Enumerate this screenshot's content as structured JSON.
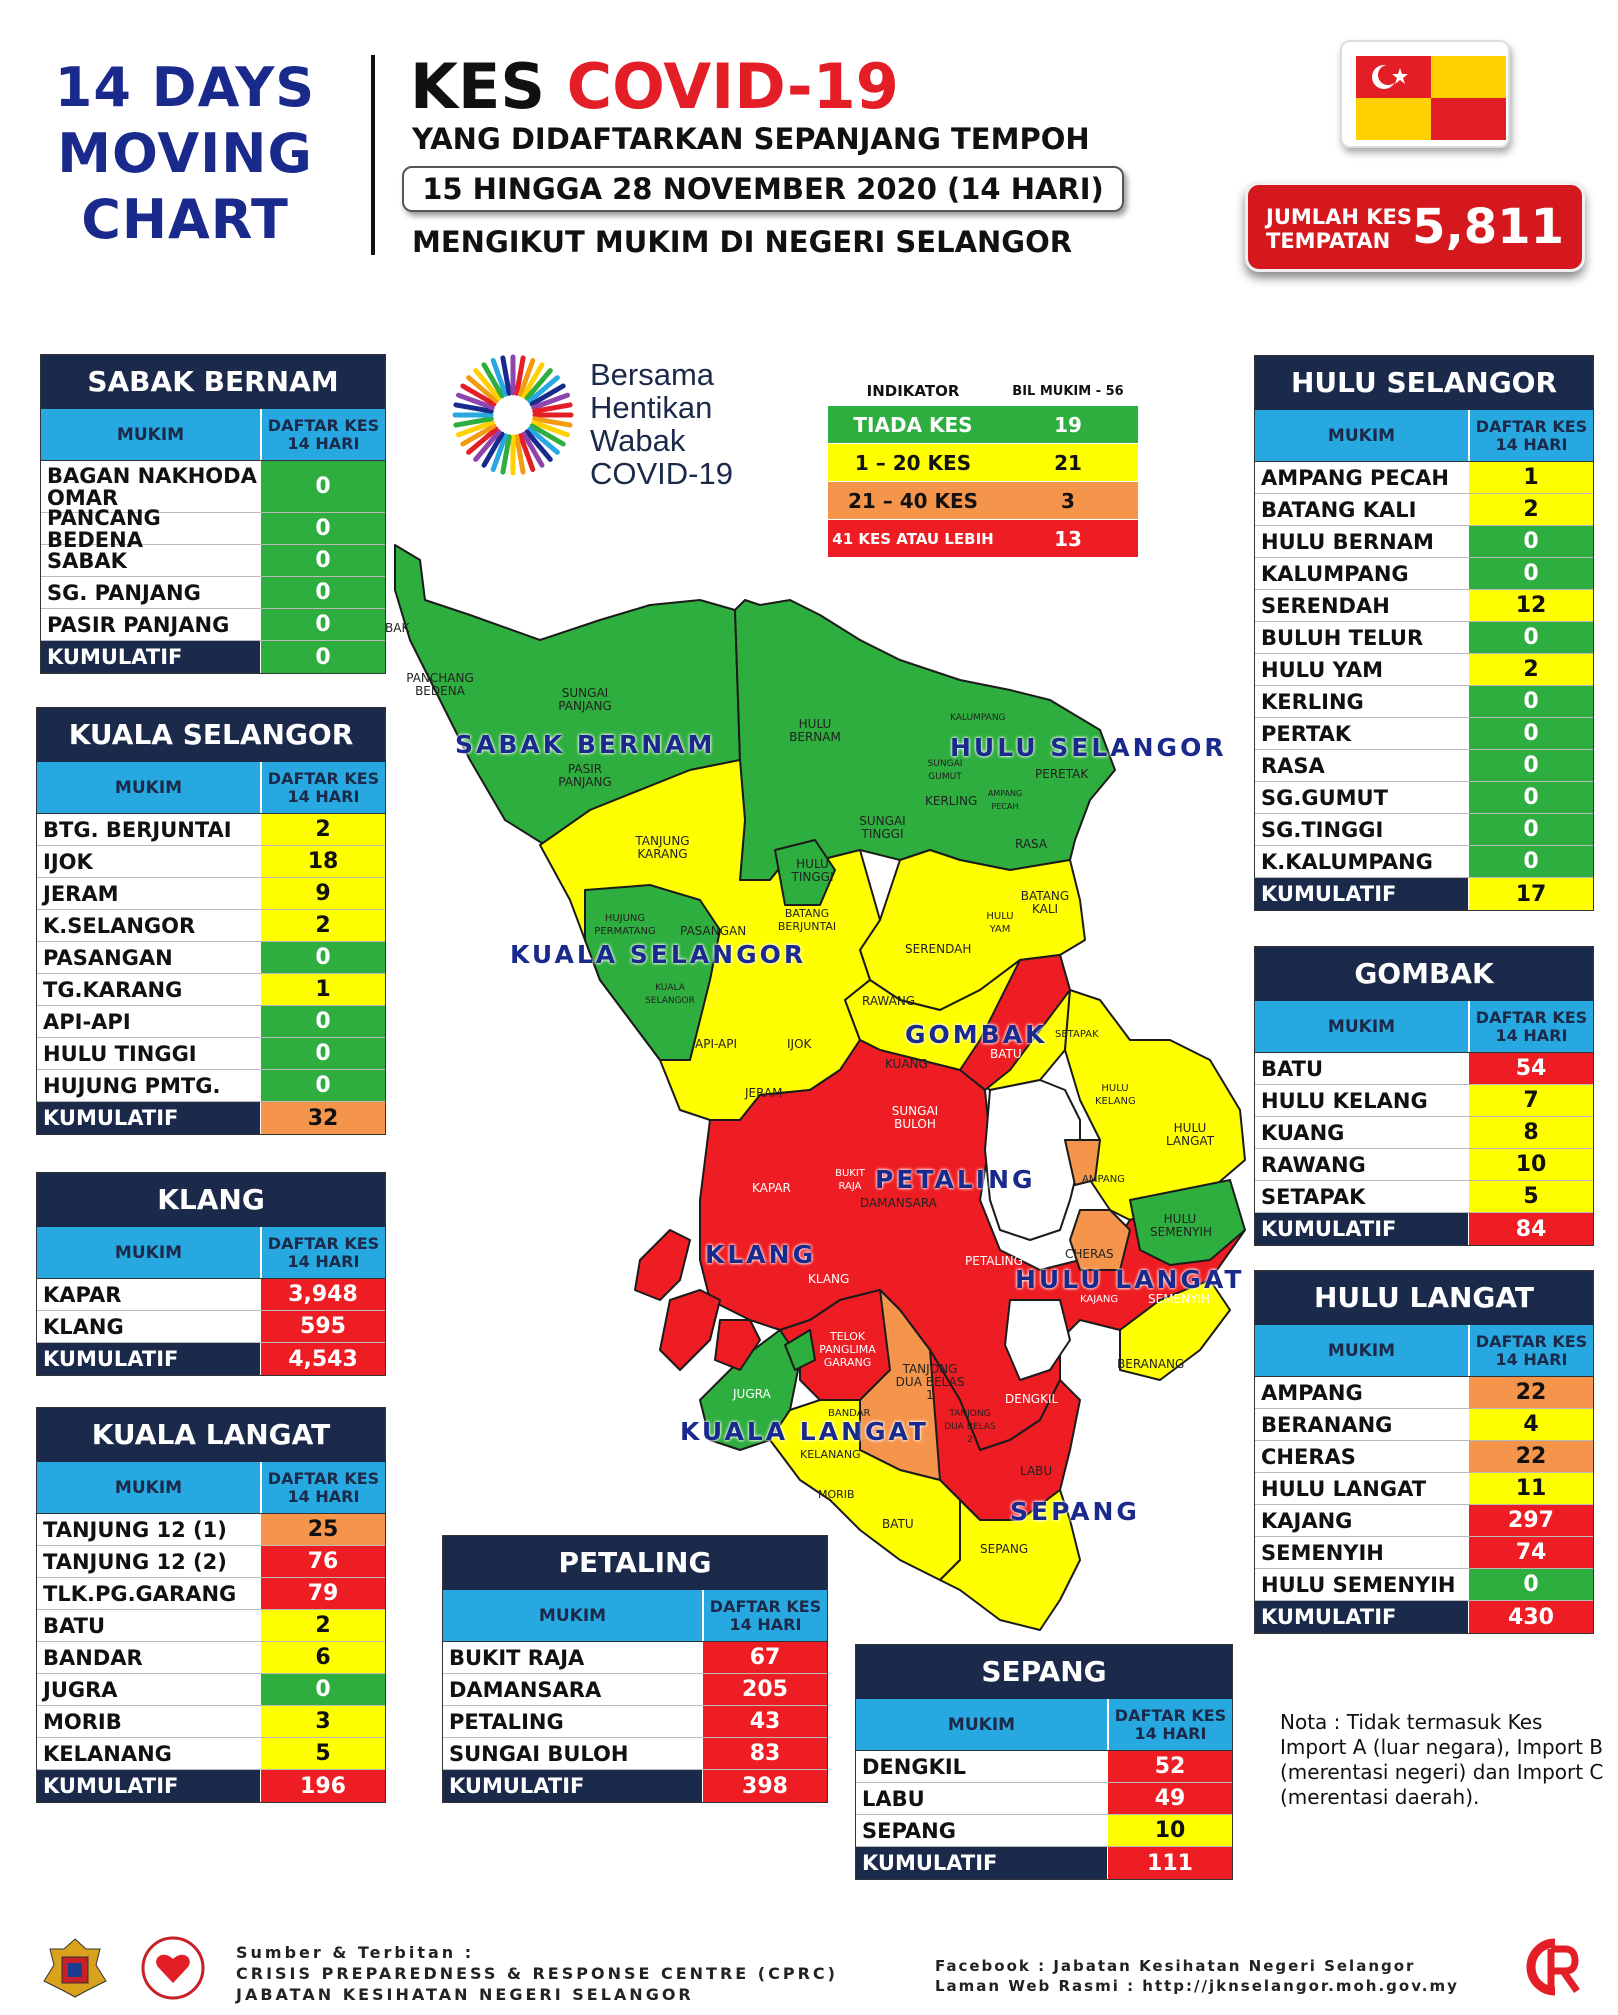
{
  "header": {
    "moving_chart": [
      "14 DAYS",
      "MOVING",
      "CHART"
    ],
    "kes_label": "KES",
    "covid_label": "COVID-19",
    "subtitle1": "YANG DIDAFTARKAN SEPANJANG TEMPOH",
    "date_range": "15 HINGGA 28 NOVEMBER 2020 (14 HARI)",
    "subtitle2": "MENGIKUT MUKIM DI NEGERI SELANGOR"
  },
  "total": {
    "label": "JUMLAH KES TEMPATAN",
    "value": "5,811"
  },
  "brand": {
    "lines": [
      "Bersama",
      "Hentikan",
      "Wabak",
      "COVID-19"
    ]
  },
  "indicator": {
    "col1": "INDIKATOR",
    "col2": "BIL MUKIM - 56",
    "rows": [
      {
        "label": "TIADA KES",
        "count": "19",
        "color": "#2eae3e"
      },
      {
        "label": "1 – 20 KES",
        "count": "21",
        "color": "#ffff00"
      },
      {
        "label": "21 – 40 KES",
        "count": "3",
        "color": "#f5954b"
      },
      {
        "label": "41 KES ATAU LEBIH",
        "count": "13",
        "color": "#ee1d23"
      }
    ]
  },
  "table_header": {
    "mukim": "MUKIM",
    "daftar": "DAFTAR KES",
    "hari": "14 HARI"
  },
  "kumulatif_label": "KUMULATIF",
  "districts": {
    "sabak_bernam": {
      "title": "SABAK BERNAM",
      "rows": [
        [
          "BAGAN NAKHODA OMAR",
          "0"
        ],
        [
          "PANCANG BEDENA",
          "0"
        ],
        [
          "SABAK",
          "0"
        ],
        [
          "SG. PANJANG",
          "0"
        ],
        [
          "PASIR PANJANG",
          "0"
        ]
      ],
      "total": "0"
    },
    "kuala_selangor": {
      "title": "KUALA SELANGOR",
      "rows": [
        [
          "BTG. BERJUNTAI",
          "2"
        ],
        [
          "IJOK",
          "18"
        ],
        [
          "JERAM",
          "9"
        ],
        [
          "K.SELANGOR",
          "2"
        ],
        [
          "PASANGAN",
          "0"
        ],
        [
          "TG.KARANG",
          "1"
        ],
        [
          "API-API",
          "0"
        ],
        [
          "HULU TINGGI",
          "0"
        ],
        [
          "HUJUNG PMTG.",
          "0"
        ]
      ],
      "total": "32"
    },
    "klang": {
      "title": "KLANG",
      "rows": [
        [
          "KAPAR",
          "3,948"
        ],
        [
          "KLANG",
          "595"
        ]
      ],
      "total": "4,543"
    },
    "kuala_langat": {
      "title": "KUALA LANGAT",
      "rows": [
        [
          "TANJUNG 12 (1)",
          "25"
        ],
        [
          "TANJUNG 12 (2)",
          "76"
        ],
        [
          "TLK.PG.GARANG",
          "79"
        ],
        [
          "BATU",
          "2"
        ],
        [
          "BANDAR",
          "6"
        ],
        [
          "JUGRA",
          "0"
        ],
        [
          "MORIB",
          "3"
        ],
        [
          "KELANANG",
          "5"
        ]
      ],
      "total": "196"
    },
    "petaling": {
      "title": "PETALING",
      "rows": [
        [
          "BUKIT RAJA",
          "67"
        ],
        [
          "DAMANSARA",
          "205"
        ],
        [
          "PETALING",
          "43"
        ],
        [
          "SUNGAI BULOH",
          "83"
        ]
      ],
      "total": "398"
    },
    "sepang": {
      "title": "SEPANG",
      "rows": [
        [
          "DENGKIL",
          "52"
        ],
        [
          "LABU",
          "49"
        ],
        [
          "SEPANG",
          "10"
        ]
      ],
      "total": "111"
    },
    "hulu_selangor": {
      "title": "HULU SELANGOR",
      "rows": [
        [
          "AMPANG PECAH",
          "1"
        ],
        [
          "BATANG KALI",
          "2"
        ],
        [
          "HULU BERNAM",
          "0"
        ],
        [
          "KALUMPANG",
          "0"
        ],
        [
          "SERENDAH",
          "12"
        ],
        [
          "BULUH TELUR",
          "0"
        ],
        [
          "HULU YAM",
          "2"
        ],
        [
          "KERLING",
          "0"
        ],
        [
          "PERTAK",
          "0"
        ],
        [
          "RASA",
          "0"
        ],
        [
          "SG.GUMUT",
          "0"
        ],
        [
          "SG.TINGGI",
          "0"
        ],
        [
          "K.KALUMPANG",
          "0"
        ]
      ],
      "total": "17"
    },
    "gombak": {
      "title": "GOMBAK",
      "rows": [
        [
          "BATU",
          "54"
        ],
        [
          "HULU KELANG",
          "7"
        ],
        [
          "KUANG",
          "8"
        ],
        [
          "RAWANG",
          "10"
        ],
        [
          "SETAPAK",
          "5"
        ]
      ],
      "total": "84"
    },
    "hulu_langat": {
      "title": "HULU LANGAT",
      "rows": [
        [
          "AMPANG",
          "22"
        ],
        [
          "BERANANG",
          "4"
        ],
        [
          "CHERAS",
          "22"
        ],
        [
          "HULU LANGAT",
          "11"
        ],
        [
          "KAJANG",
          "297"
        ],
        [
          "SEMENYIH",
          "74"
        ],
        [
          "HULU SEMENYIH",
          "0"
        ]
      ],
      "total": "430"
    }
  },
  "map": {
    "district_labels": [
      "SABAK BERNAM",
      "HULU SELANGOR",
      "KUALA SELANGOR",
      "GOMBAK",
      "PETALING",
      "KLANG",
      "HULU LANGAT",
      "KUALA LANGAT",
      "SEPANG"
    ],
    "mukim_labels": [
      "BAK",
      "PANCHANG BEDENA",
      "SUNGAI PANJANG",
      "PASIR PANJANG",
      "HULU BERNAM",
      "KALUMPANG",
      "SUNGAI GUMUT",
      "KERLING",
      "AMPANG PECAH",
      "PERETAK",
      "SUNGAI TINGGI",
      "RASA",
      "TANJUNG KARANG",
      "HULU TINGGI",
      "BATANG BERJUNTAI",
      "HUJUNG PERMATANG",
      "PASANGAN",
      "KUALA SELANGOR",
      "API-API",
      "IJOK",
      "BATANG KALI",
      "HULU YAM",
      "SERENDAH",
      "RAWANG",
      "SETAPAK",
      "KUANG",
      "BATU",
      "JERAM",
      "HULU KELANG",
      "HULU LANGAT",
      "SUNGAI BULOH",
      "KAPAR",
      "BUKIT RAJA",
      "DAMANSARA",
      "AMPANG",
      "HULU SEMENYIH",
      "PETALING",
      "CHERAS",
      "KAJANG",
      "SEMENYIH",
      "KLANG",
      "TELOK PANGLIMA GARANG",
      "TANJONG DUA BELAS 1",
      "TANJONG DUA BELAS 2",
      "DENGKIL",
      "BERANANG",
      "JUGRA",
      "BANDAR",
      "KELANANG",
      "MORIB",
      "BATU",
      "LABU",
      "SEPANG"
    ]
  },
  "nota": "Nota : Tidak termasuk Kes Import A (luar negara), Import B (merentasi negeri) dan Import C (merentasi daerah).",
  "footer": {
    "source_label": "Sumber & Terbitan :",
    "source_line1": "CRISIS PREPAREDNESS & RESPONSE CENTRE (CPRC)",
    "source_line2": "JABATAN KESIHATAN NEGERI SELANGOR",
    "facebook": "Facebook : Jabatan Kesihatan Negeri Selangor",
    "website": "Laman Web Rasmi : http://jknselangor.moh.gov.my",
    "cprc_logo_text": "CPRC"
  }
}
